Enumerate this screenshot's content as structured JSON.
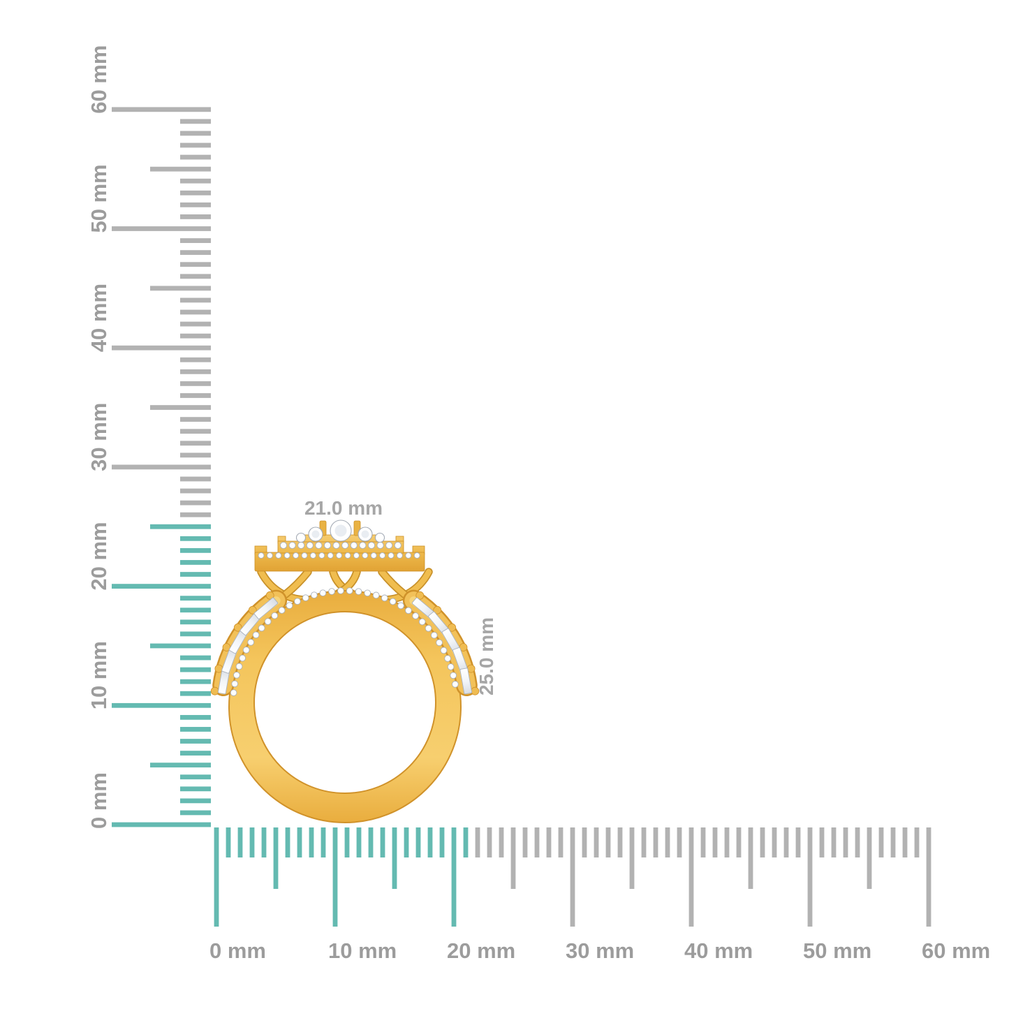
{
  "annotations": {
    "width_label": "21.0 mm",
    "height_label": "25.0 mm"
  },
  "rulers": {
    "unit": "mm",
    "vertical": {
      "min_mm": 0,
      "max_mm": 60,
      "major_step_mm": 10,
      "half_step_mm": 5,
      "minor_step_mm": 1,
      "labels": [
        "0 mm",
        "10 mm",
        "20 mm",
        "30 mm",
        "40 mm",
        "50 mm",
        "60 mm"
      ],
      "highlighted_span_mm": 25
    },
    "horizontal": {
      "min_mm": 0,
      "max_mm": 60,
      "major_step_mm": 10,
      "half_step_mm": 5,
      "minor_step_mm": 1,
      "labels": [
        "0 mm",
        "10 mm",
        "20 mm",
        "30 mm",
        "40 mm",
        "50 mm",
        "60 mm"
      ],
      "highlighted_span_mm": 21
    }
  },
  "colors": {
    "background": "#FFFFFF",
    "highlight_teal": "#64BAB1",
    "tick_gray": "#B2B2B2",
    "ruler_label_gray": "#9C9C9C",
    "annotation_gray": "#A6A6A6",
    "gold": "#F2C159",
    "gold_dark": "#D0922A",
    "gold_light": "#F7D47A",
    "diamond_white": "#FFFFFF",
    "diamond_shade": "#DDE2E9"
  }
}
